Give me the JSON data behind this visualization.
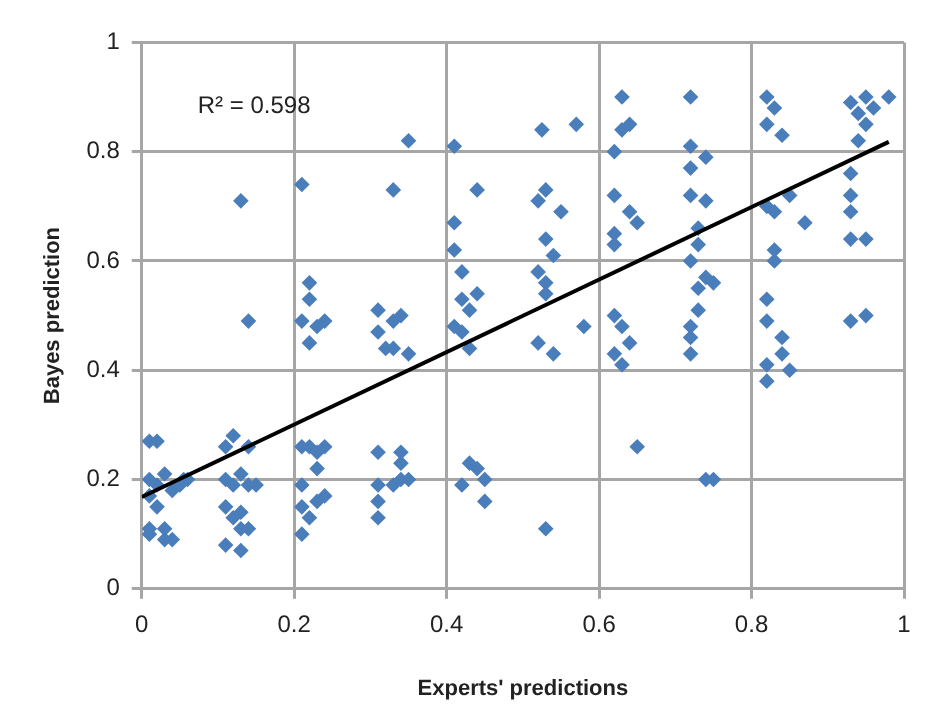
{
  "chart_data": {
    "type": "scatter",
    "xlabel": "Experts' predictions",
    "ylabel": "Bayes prediction",
    "xlim": [
      0,
      1
    ],
    "ylim": [
      0,
      1
    ],
    "xticks": [
      0,
      0.2,
      0.4,
      0.6,
      0.8,
      1
    ],
    "yticks": [
      0,
      0.2,
      0.4,
      0.6,
      0.8,
      1
    ],
    "grid": true,
    "annotations": [
      "R² = 0.598"
    ],
    "series": [
      {
        "type": "scatter",
        "marker": "diamond",
        "color": "#4a7ebb",
        "x": [
          0.01,
          0.02,
          0.01,
          0.02,
          0.03,
          0.04,
          0.05,
          0.055,
          0.06,
          0.01,
          0.02,
          0.01,
          0.03,
          0.01,
          0.03,
          0.04,
          0.13,
          0.14,
          0.12,
          0.11,
          0.14,
          0.11,
          0.12,
          0.13,
          0.14,
          0.15,
          0.11,
          0.12,
          0.13,
          0.13,
          0.14,
          0.11,
          0.13,
          0.21,
          0.22,
          0.22,
          0.21,
          0.23,
          0.24,
          0.22,
          0.21,
          0.22,
          0.23,
          0.23,
          0.24,
          0.21,
          0.24,
          0.21,
          0.22,
          0.23,
          0.21,
          0.35,
          0.33,
          0.31,
          0.33,
          0.34,
          0.31,
          0.32,
          0.33,
          0.35,
          0.31,
          0.34,
          0.34,
          0.34,
          0.35,
          0.31,
          0.33,
          0.31,
          0.31,
          0.41,
          0.44,
          0.41,
          0.41,
          0.42,
          0.43,
          0.41,
          0.42,
          0.43,
          0.42,
          0.44,
          0.43,
          0.42,
          0.44,
          0.45,
          0.45,
          0.525,
          0.57,
          0.52,
          0.53,
          0.55,
          0.53,
          0.54,
          0.52,
          0.53,
          0.53,
          0.58,
          0.52,
          0.54,
          0.53,
          0.63,
          0.63,
          0.64,
          0.62,
          0.62,
          0.64,
          0.65,
          0.62,
          0.62,
          0.62,
          0.63,
          0.64,
          0.62,
          0.63,
          0.65,
          0.72,
          0.72,
          0.74,
          0.72,
          0.72,
          0.74,
          0.73,
          0.73,
          0.72,
          0.74,
          0.75,
          0.73,
          0.73,
          0.72,
          0.72,
          0.72,
          0.74,
          0.75,
          0.82,
          0.83,
          0.82,
          0.84,
          0.85,
          0.83,
          0.82,
          0.87,
          0.83,
          0.83,
          0.82,
          0.82,
          0.84,
          0.84,
          0.82,
          0.85,
          0.82,
          0.93,
          0.94,
          0.95,
          0.96,
          0.98,
          0.95,
          0.94,
          0.93,
          0.93,
          0.93,
          0.93,
          0.95,
          0.93,
          0.95
        ],
        "values": [
          0.27,
          0.27,
          0.2,
          0.19,
          0.21,
          0.18,
          0.19,
          0.2,
          0.2,
          0.17,
          0.15,
          0.11,
          0.11,
          0.1,
          0.09,
          0.09,
          0.71,
          0.49,
          0.28,
          0.26,
          0.26,
          0.2,
          0.19,
          0.21,
          0.19,
          0.19,
          0.15,
          0.13,
          0.14,
          0.11,
          0.11,
          0.08,
          0.07,
          0.74,
          0.56,
          0.53,
          0.49,
          0.48,
          0.49,
          0.45,
          0.26,
          0.26,
          0.25,
          0.22,
          0.26,
          0.19,
          0.17,
          0.15,
          0.13,
          0.16,
          0.1,
          0.82,
          0.73,
          0.51,
          0.49,
          0.5,
          0.47,
          0.44,
          0.44,
          0.43,
          0.25,
          0.25,
          0.23,
          0.2,
          0.2,
          0.19,
          0.19,
          0.16,
          0.13,
          0.81,
          0.73,
          0.67,
          0.62,
          0.53,
          0.51,
          0.48,
          0.47,
          0.44,
          0.58,
          0.54,
          0.23,
          0.19,
          0.22,
          0.16,
          0.2,
          0.84,
          0.85,
          0.71,
          0.73,
          0.69,
          0.64,
          0.61,
          0.58,
          0.56,
          0.54,
          0.48,
          0.45,
          0.43,
          0.11,
          0.9,
          0.84,
          0.85,
          0.8,
          0.72,
          0.69,
          0.67,
          0.65,
          0.63,
          0.5,
          0.48,
          0.45,
          0.43,
          0.41,
          0.26,
          0.9,
          0.81,
          0.79,
          0.77,
          0.72,
          0.71,
          0.66,
          0.63,
          0.6,
          0.57,
          0.56,
          0.55,
          0.51,
          0.48,
          0.46,
          0.43,
          0.2,
          0.2,
          0.9,
          0.88,
          0.85,
          0.83,
          0.72,
          0.69,
          0.7,
          0.67,
          0.62,
          0.6,
          0.53,
          0.49,
          0.46,
          0.43,
          0.41,
          0.4,
          0.38,
          0.89,
          0.87,
          0.9,
          0.88,
          0.9,
          0.85,
          0.82,
          0.76,
          0.72,
          0.69,
          0.64,
          0.64,
          0.49,
          0.5
        ]
      },
      {
        "type": "line",
        "marker": "none",
        "color": "#000000",
        "x": [
          0,
          0.98
        ],
        "values": [
          0.168,
          0.818
        ]
      }
    ]
  }
}
